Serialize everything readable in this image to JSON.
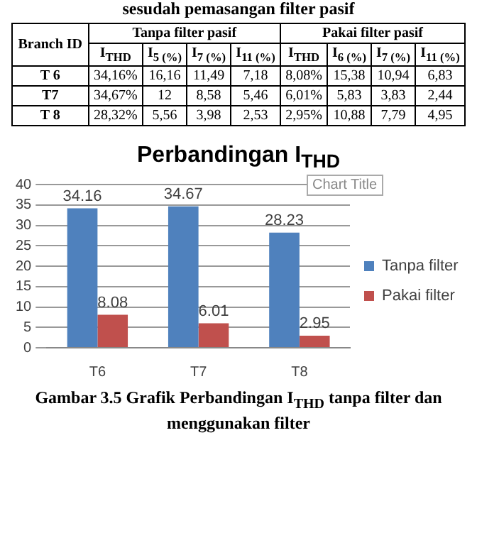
{
  "chart_data": [
    {
      "type": "heatmap",
      "title": "sesudah pemasangan filter pasif",
      "ylabel": "Branch ID",
      "annotations": [
        "Tanpa filter pasif",
        "Pakai filter pasif"
      ],
      "categories": [
        "I$_{THD}$",
        "I$_{5 (%)}$",
        "I$_{7 (%)}$",
        "I$_{11 (%)}$",
        "I$_{THD}$",
        "I$_{6 (%)}$",
        "I$_{7 (%)}$",
        "I$_{11 (%)}$"
      ],
      "y_categories": [
        "T 6",
        "T7",
        "T 8"
      ],
      "cells": [
        [
          34.16,
          16.16,
          11.49,
          7.18,
          8.08,
          15.38,
          10.94,
          6.83
        ],
        [
          34.67,
          12,
          8.58,
          5.46,
          6.01,
          5.83,
          3.83,
          2.44
        ],
        [
          28.32,
          5.56,
          3.98,
          2.53,
          2.95,
          10.88,
          7.79,
          4.95
        ]
      ],
      "cell_labels": [
        [
          "34,16%",
          "16,16",
          "11,49",
          "7,18",
          "8,08%",
          "15,38",
          "10,94",
          "6,83"
        ],
        [
          "34,67%",
          "12",
          "8,58",
          "5,46",
          "6,01%",
          "5,83",
          "3,83",
          "2,44"
        ],
        [
          "28,32%",
          "5,56",
          "3,98",
          "2,53",
          "2,95%",
          "10,88",
          "7,79",
          "4,95"
        ]
      ]
    },
    {
      "type": "bar",
      "title": "Perbandingan I$_{THD}$",
      "categories": [
        "T6",
        "T7",
        "T8"
      ],
      "series": [
        {
          "name": "Tanpa filter",
          "color": "#4f81bd",
          "values": [
            34.16,
            34.67,
            28.23
          ]
        },
        {
          "name": "Pakai filter",
          "color": "#c0504d",
          "values": [
            8.08,
            6.01,
            2.95
          ]
        }
      ],
      "ylim": [
        0,
        40
      ],
      "yticks": [
        0,
        5,
        10,
        15,
        20,
        25,
        30,
        35,
        40
      ],
      "grid": "y",
      "legend": "right",
      "data_labels": true,
      "annotations": [
        "Chart Title",
        "Gambar 3.5 Grafik Perbandingan I$_{THD}$ tanpa filter dan menggunakan filter"
      ]
    }
  ]
}
